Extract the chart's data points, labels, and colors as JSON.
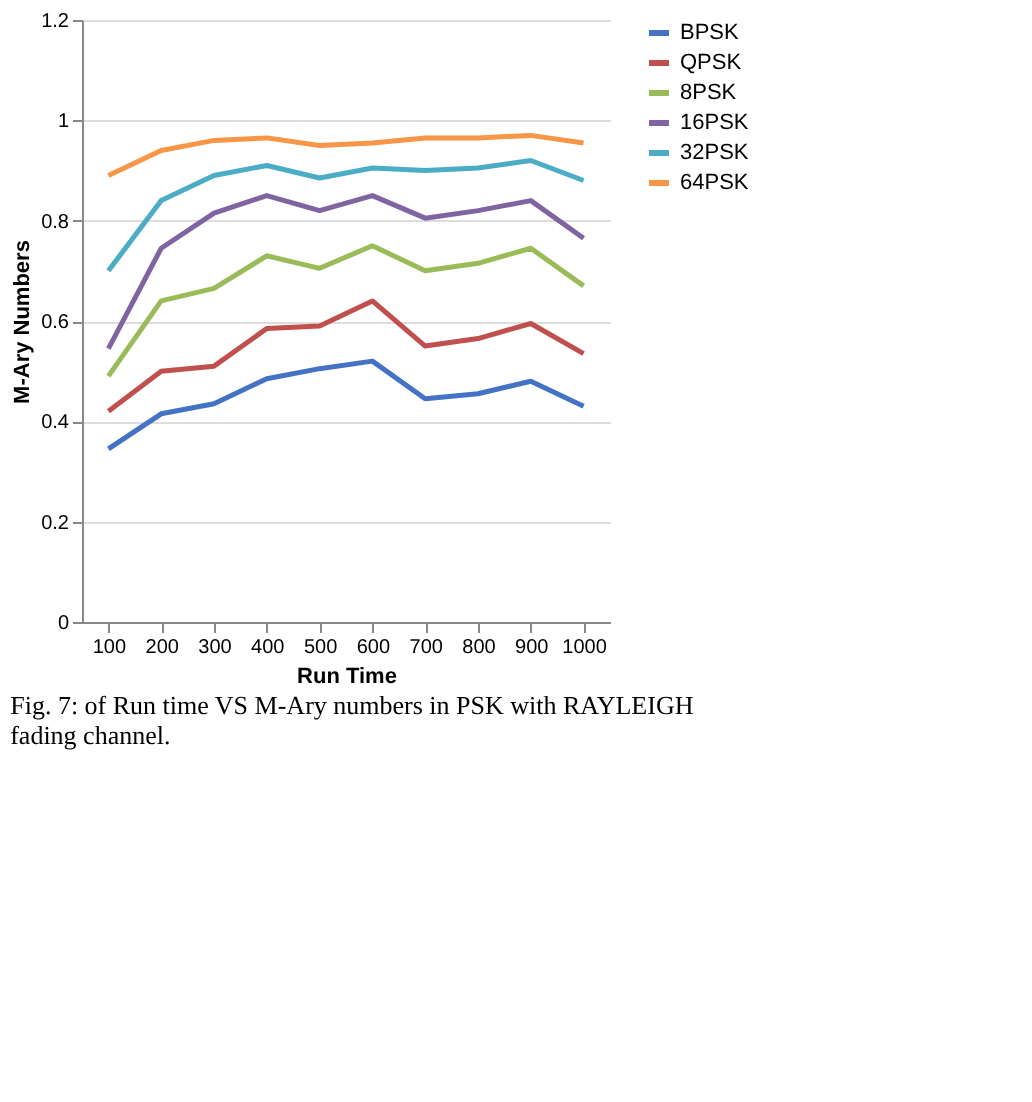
{
  "chart_data": {
    "type": "line",
    "xlabel": "Run Time",
    "ylabel": "M-Ary Numbers",
    "categories": [
      "100",
      "200",
      "300",
      "400",
      "500",
      "600",
      "700",
      "800",
      "900",
      "1000"
    ],
    "series": [
      {
        "name": "BPSK",
        "color": "#4472c4",
        "values": [
          0.345,
          0.415,
          0.435,
          0.485,
          0.505,
          0.52,
          0.445,
          0.455,
          0.48,
          0.43
        ]
      },
      {
        "name": "QPSK",
        "color": "#c0504d",
        "values": [
          0.42,
          0.5,
          0.51,
          0.585,
          0.59,
          0.64,
          0.55,
          0.565,
          0.595,
          0.535
        ]
      },
      {
        "name": "8PSK",
        "color": "#9bbb59",
        "values": [
          0.49,
          0.64,
          0.665,
          0.73,
          0.705,
          0.75,
          0.7,
          0.715,
          0.745,
          0.67
        ]
      },
      {
        "name": "16PSK",
        "color": "#8064a2",
        "values": [
          0.545,
          0.745,
          0.815,
          0.85,
          0.82,
          0.85,
          0.805,
          0.82,
          0.84,
          0.765
        ]
      },
      {
        "name": "32PSK",
        "color": "#4bacc6",
        "values": [
          0.7,
          0.84,
          0.89,
          0.91,
          0.885,
          0.905,
          0.9,
          0.905,
          0.92,
          0.88
        ]
      },
      {
        "name": "64PSK",
        "color": "#f79646",
        "values": [
          0.89,
          0.94,
          0.96,
          0.965,
          0.95,
          0.955,
          0.965,
          0.965,
          0.97,
          0.955
        ]
      }
    ],
    "ylim": [
      0,
      1.2
    ],
    "yticks": [
      0,
      0.2,
      0.4,
      0.6,
      0.8,
      1,
      1.2
    ],
    "grid": "y",
    "legend": "right",
    "marker": "none",
    "line_style": "solid",
    "annotations": [
      "Fig. 7: of Run time VS M-Ary numbers in PSK with RAYLEIGH fading channel."
    ]
  }
}
